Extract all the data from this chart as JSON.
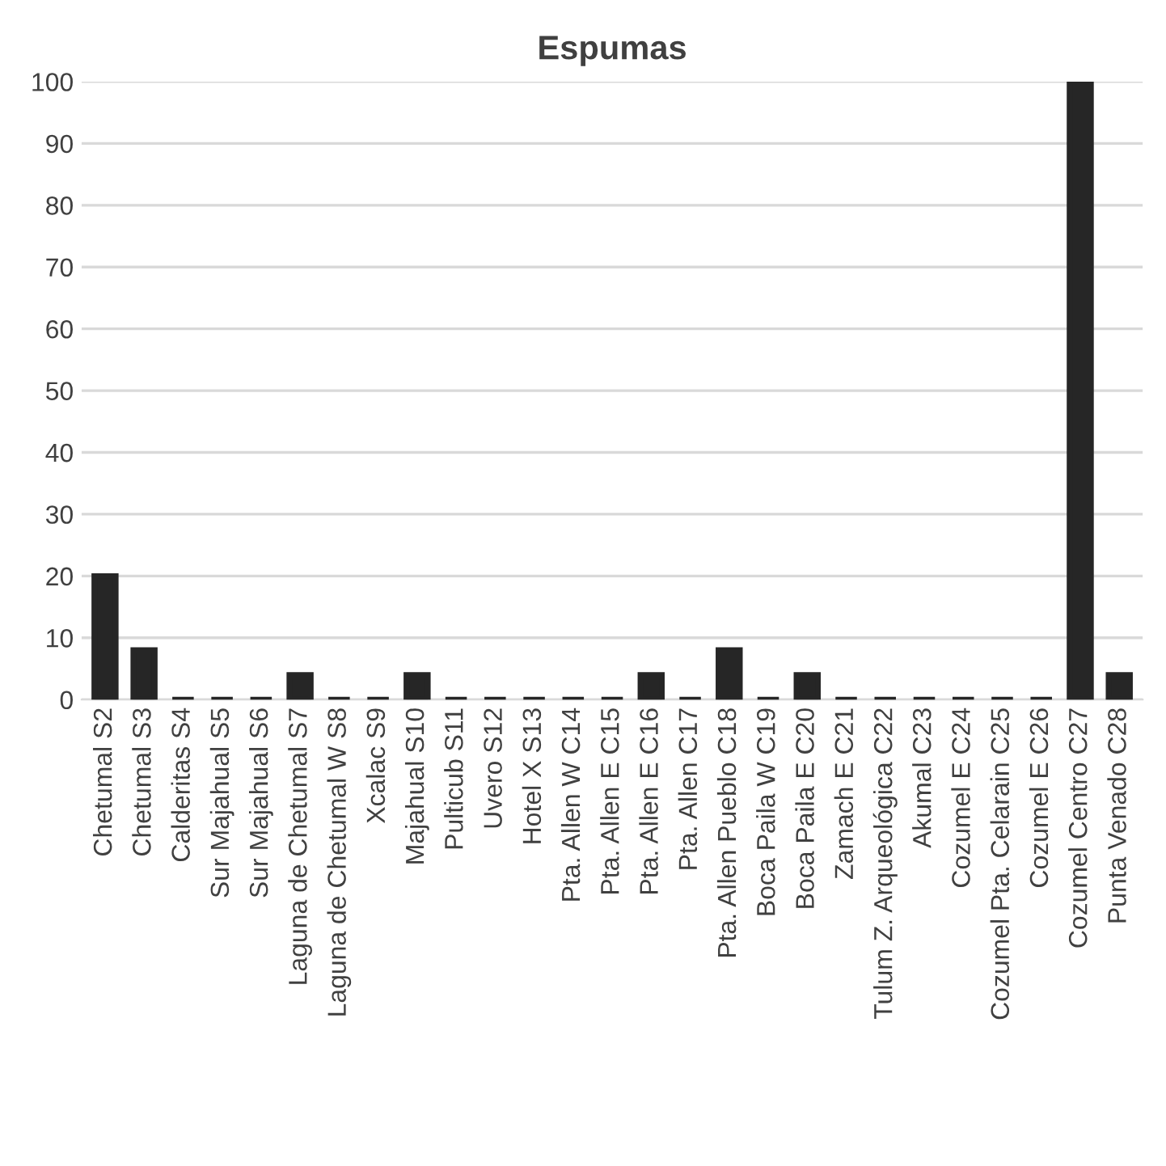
{
  "chart_data": {
    "type": "bar",
    "title": "Espumas",
    "categories": [
      "Chetumal S2",
      "Chetumal S3",
      "Calderitas S4",
      "Sur Majahual S5",
      "Sur Majahual S6",
      "Laguna de Chetumal S7",
      "Laguna de Chetumal W S8",
      "Xcalac S9",
      "Majahual S10",
      "Pulticub S11",
      "Uvero S12",
      "Hotel X S13",
      "Pta. Allen W C14",
      "Pta. Allen E C15",
      "Pta. Allen E C16",
      "Pta. Allen C17",
      "Pta. Allen Pueblo C18",
      "Boca Paila W C19",
      "Boca Paila E C20",
      "Zamach E C21",
      "Tulum Z. Arqueológica C22",
      "Akumal C23",
      "Cozumel E C24",
      "Cozumel Pta. Celarain C25",
      "Cozumel E C26",
      "Cozumel Centro C27",
      "Punta Venado C28"
    ],
    "values": [
      20,
      8,
      0,
      0,
      0,
      4,
      0,
      0,
      4,
      0,
      0,
      0,
      0,
      0,
      4,
      0,
      8,
      0,
      4,
      0,
      0,
      0,
      0,
      0,
      0,
      100,
      4
    ],
    "color": "#262626",
    "ylim": [
      0,
      100
    ],
    "yticks": [
      0,
      10,
      20,
      30,
      40,
      50,
      60,
      70,
      80,
      90,
      100
    ],
    "grid": "y"
  }
}
